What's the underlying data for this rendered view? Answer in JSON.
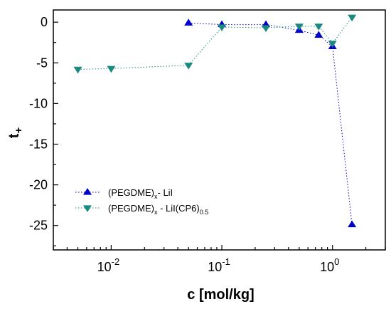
{
  "chart_data": {
    "type": "scatter",
    "title": "",
    "xlabel": "c [mol/kg]",
    "ylabel": "t",
    "ylabel_sub": "+",
    "x_scale": "log",
    "xlim": [
      0.003,
      3
    ],
    "ylim": [
      -28,
      1.5
    ],
    "x_ticks": [
      0.01,
      0.1,
      1
    ],
    "x_tick_labels": [
      {
        "base": "10",
        "exp": "-2"
      },
      {
        "base": "10",
        "exp": "-1"
      },
      {
        "base": "10",
        "exp": "0"
      }
    ],
    "y_ticks": [
      0,
      -5,
      -10,
      -15,
      -20,
      -25
    ],
    "y_tick_labels": [
      "0",
      "-5",
      "-10",
      "-15",
      "-20",
      "-25"
    ],
    "grid": false,
    "legend_position": "lower-left",
    "series": [
      {
        "name": "(PEGDME)x- LiI",
        "name_parts": {
          "a": "(PEGDME)",
          "sub": "x",
          "b": "- LiI"
        },
        "marker": "triangle-up",
        "color": "#0000cc",
        "x": [
          0.05,
          0.1,
          0.25,
          0.5,
          0.75,
          1.0,
          1.5
        ],
        "y": [
          -0.1,
          -0.3,
          -0.3,
          -1.0,
          -1.6,
          -3.0,
          -24.9
        ]
      },
      {
        "name": "(PEGDME)x - LiI(CP6)0.5",
        "name_parts": {
          "a": "(PEGDME)",
          "sub": "x",
          "b": " - LiI(CP6)",
          "sub2": "0.5"
        },
        "marker": "triangle-down",
        "color": "#1a8a80",
        "x": [
          0.005,
          0.01,
          0.05,
          0.1,
          0.25,
          0.5,
          0.75,
          1.0,
          1.5
        ],
        "y": [
          -5.8,
          -5.7,
          -5.3,
          -0.6,
          -0.7,
          -0.5,
          -0.5,
          -2.6,
          0.6
        ]
      }
    ]
  }
}
